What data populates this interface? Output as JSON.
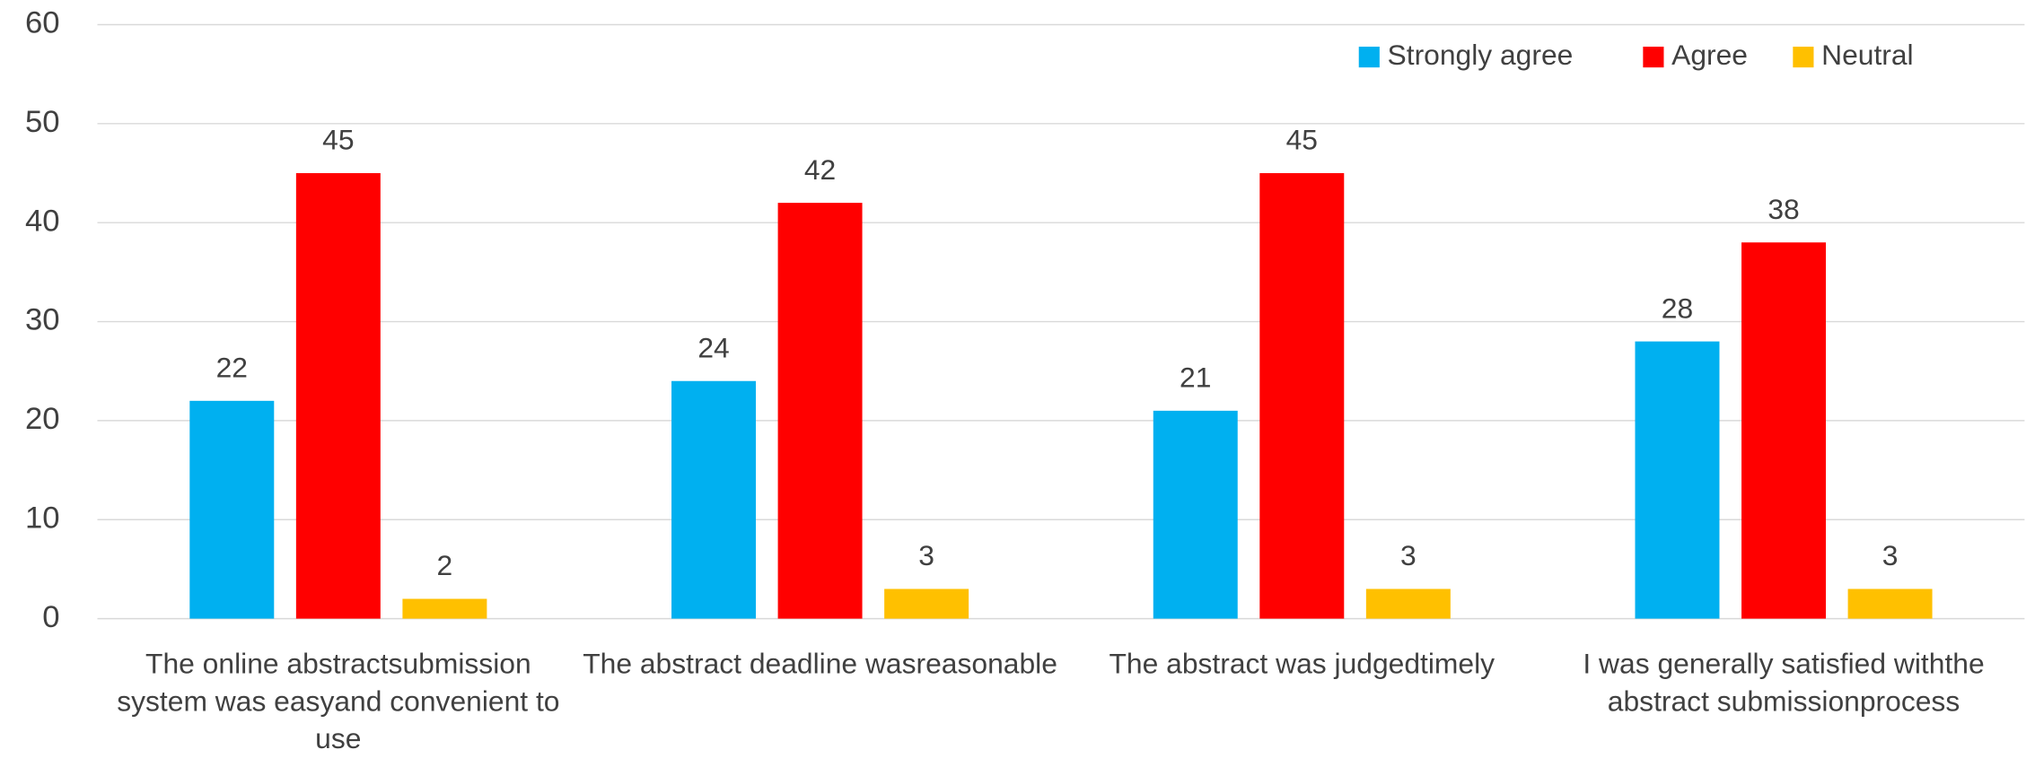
{
  "chart_data": {
    "type": "bar",
    "categories": [
      "The online abstractsubmission system was easyand convenient to use",
      "The abstract deadline wasreasonable",
      "The abstract was judgedtimely",
      "I was generally satisfied withthe abstract submissionprocess"
    ],
    "series": [
      {
        "name": "Strongly agree",
        "color": "#00b0f0",
        "values": [
          22,
          24,
          21,
          28
        ]
      },
      {
        "name": "Agree",
        "color": "#ff0000",
        "values": [
          45,
          42,
          45,
          38
        ]
      },
      {
        "name": "Neutral",
        "color": "#ffc000",
        "values": [
          2,
          3,
          3,
          3
        ]
      }
    ],
    "ylim": [
      0,
      60
    ],
    "yticks": [
      0,
      10,
      20,
      30,
      40,
      50,
      60
    ],
    "grid": true,
    "legend": "upper right"
  }
}
